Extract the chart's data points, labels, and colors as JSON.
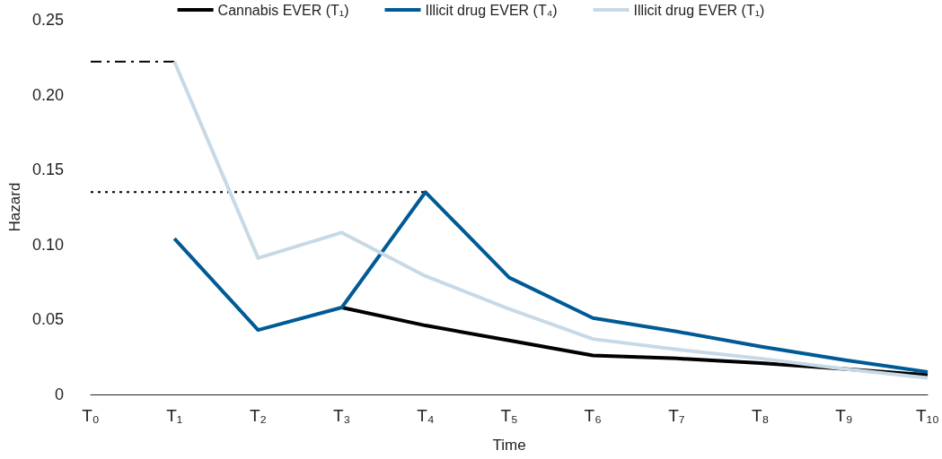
{
  "chart_data": {
    "type": "line",
    "xlabel": "Time",
    "ylabel": "Hazard",
    "categories": [
      "T₀",
      "T₁",
      "T₂",
      "T₃",
      "T₄",
      "T₅",
      "T₆",
      "T₇",
      "T₈",
      "T₉",
      "T₁₀"
    ],
    "series": [
      {
        "name": "Cannabis EVER (T₁)",
        "color": "#000000",
        "values": [
          null,
          null,
          null,
          0.058,
          0.046,
          0.036,
          0.026,
          0.024,
          0.021,
          0.017,
          0.013
        ]
      },
      {
        "name": "Illicit drug EVER (T₄)",
        "color": "#005a96",
        "values": [
          null,
          0.104,
          0.043,
          0.058,
          0.135,
          0.078,
          0.051,
          0.042,
          0.032,
          0.023,
          0.015
        ]
      },
      {
        "name": "Illicit drug EVER (T₁)",
        "color": "#c8d9e6",
        "values": [
          null,
          0.222,
          0.091,
          0.108,
          0.079,
          0.057,
          0.037,
          0.03,
          0.024,
          0.017,
          0.011
        ]
      },
      {
        "color": "#000000",
        "line_style": "dashed",
        "values": [
          0.222,
          0.222,
          null,
          null,
          null,
          null,
          null,
          null,
          null,
          null,
          null
        ]
      },
      {
        "color": "#000000",
        "line_style": "dotted",
        "values": [
          0.135,
          0.135,
          0.135,
          0.135,
          0.135,
          null,
          null,
          null,
          null,
          null,
          null
        ]
      }
    ],
    "ylim": [
      0,
      0.25
    ],
    "yticks": [
      0,
      0.05,
      {
        "value": 0.1,
        "label": "0.10"
      },
      0.15,
      {
        "value": 0.2,
        "label": "0.20"
      },
      0.25
    ],
    "grid": false,
    "legend": "top",
    "marker": "none",
    "line_style": "solid"
  }
}
